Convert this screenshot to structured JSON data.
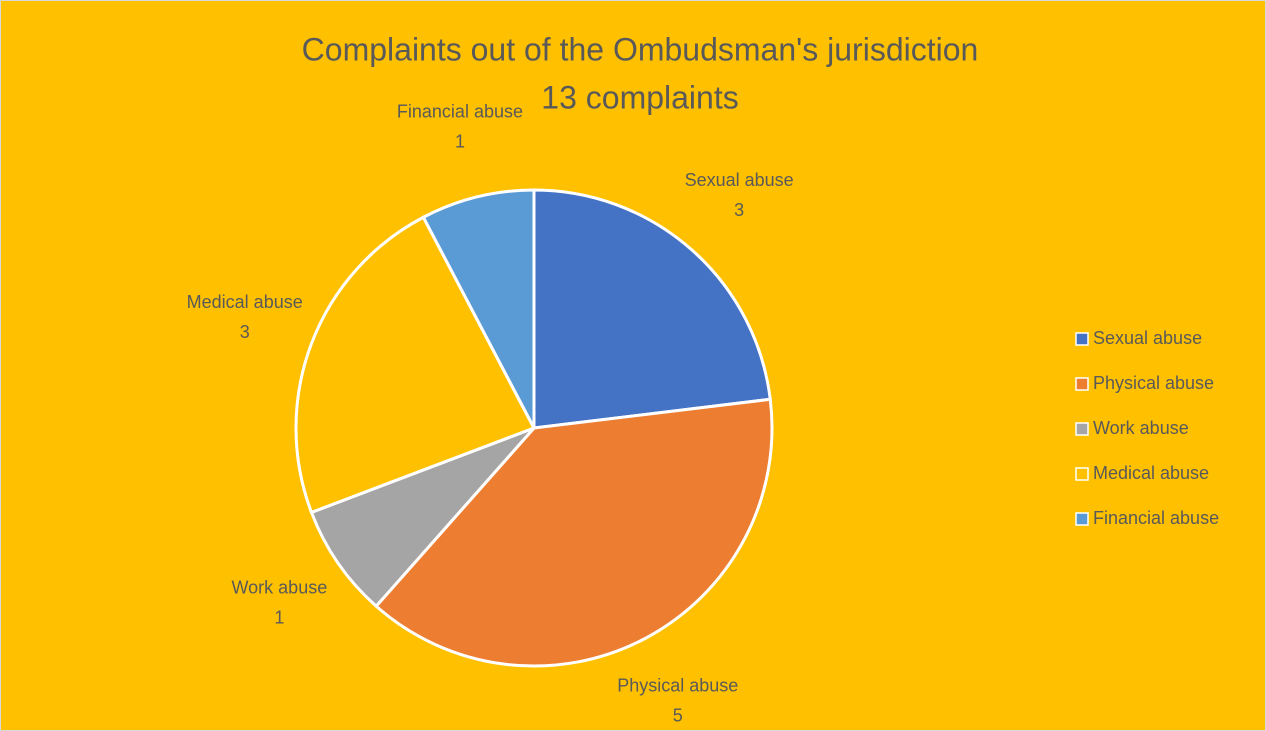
{
  "chart_data": {
    "type": "pie",
    "title": "Complaints out of the Ombudsman's jurisdiction",
    "subtitle": "13 complaints",
    "categories": [
      "Sexual abuse",
      "Physical abuse",
      "Work abuse",
      "Medical abuse",
      "Financial abuse"
    ],
    "values": [
      3,
      5,
      1,
      3,
      1
    ],
    "colors": [
      "#4472c4",
      "#ed7d31",
      "#a5a5a5",
      "#ffc000",
      "#5b9bd5"
    ],
    "background": "#ffc000",
    "legend": "right"
  }
}
